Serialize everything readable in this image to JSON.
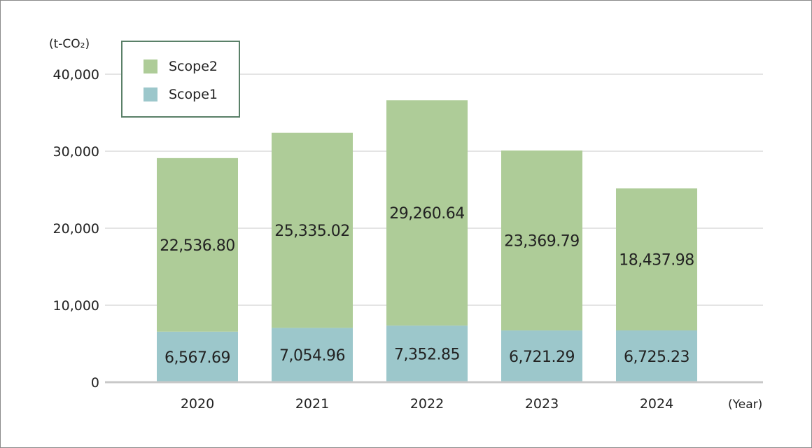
{
  "chart_data": {
    "type": "bar",
    "stacked": true,
    "categories": [
      "2020",
      "2021",
      "2022",
      "2023",
      "2024"
    ],
    "series": [
      {
        "name": "Scope1",
        "values": [
          6567.69,
          7054.96,
          7352.85,
          6721.29,
          6725.23
        ],
        "labels": [
          "6,567.69",
          "7,054.96",
          "7,352.85",
          "6,721.29",
          "6,725.23"
        ],
        "color": "#9cc7cb"
      },
      {
        "name": "Scope2",
        "values": [
          22536.8,
          25335.02,
          29260.64,
          23369.79,
          18437.98
        ],
        "labels": [
          "22,536.80",
          "25,335.02",
          "29,260.64",
          "23,369.79",
          "18,437.98"
        ],
        "color": "#aecc98"
      }
    ],
    "ylabel": "(t-CO₂)",
    "xlabel": "(Year)",
    "ylim": [
      0,
      40000
    ],
    "yticks": [
      0,
      10000,
      20000,
      30000,
      40000
    ],
    "ytick_labels": [
      "0",
      "10,000",
      "20,000",
      "30,000",
      "40,000"
    ],
    "grid": true,
    "legend": {
      "placement": "top-left",
      "entries": [
        "Scope2",
        "Scope1"
      ]
    }
  }
}
